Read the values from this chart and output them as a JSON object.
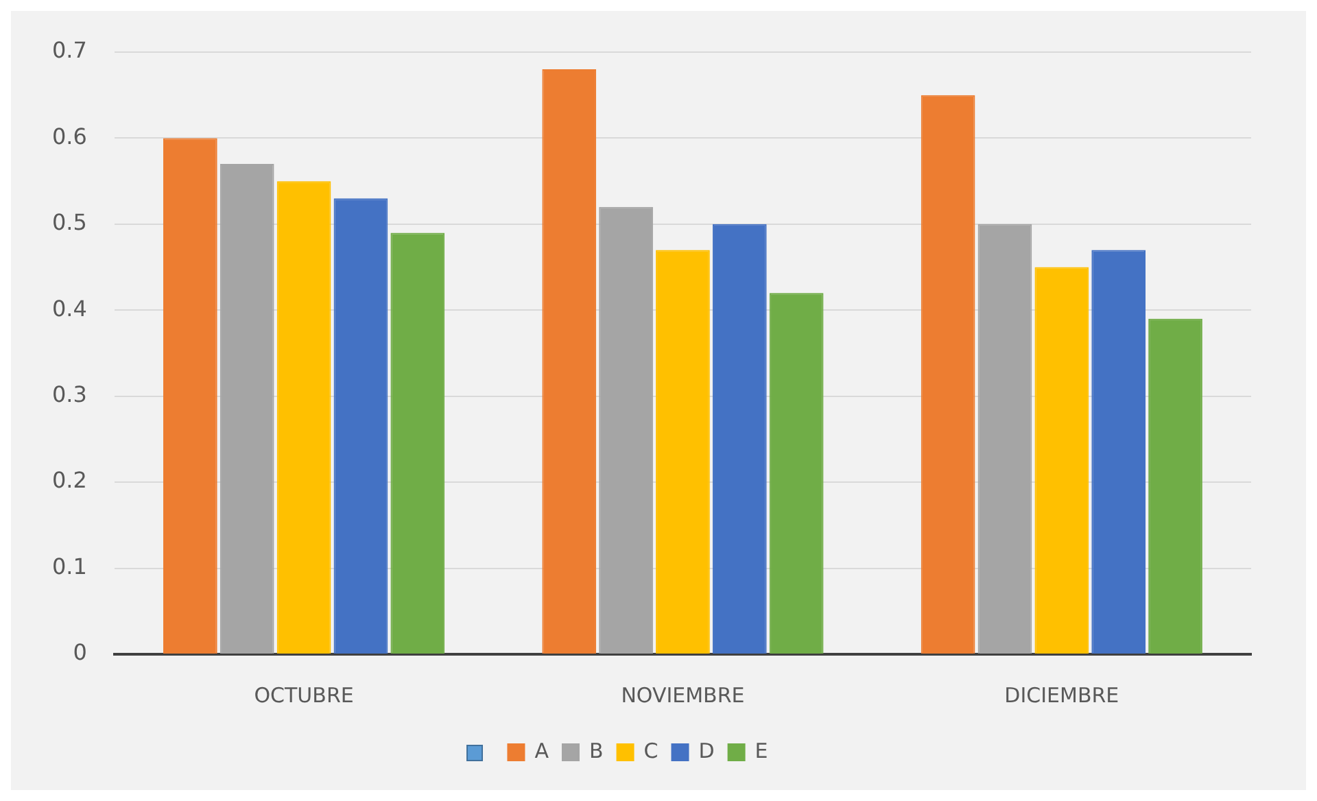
{
  "chart_data": {
    "type": "bar",
    "categories": [
      "OCTUBRE",
      "NOVIEMBRE",
      "DICIEMBRE"
    ],
    "series": [
      {
        "name": "A",
        "color": "#ed7d31",
        "values": [
          0.6,
          0.68,
          0.65
        ]
      },
      {
        "name": "B",
        "color": "#a5a5a5",
        "values": [
          0.57,
          0.52,
          0.5
        ]
      },
      {
        "name": "C",
        "color": "#ffc000",
        "values": [
          0.55,
          0.47,
          0.45
        ]
      },
      {
        "name": "D",
        "color": "#4472c4",
        "values": [
          0.53,
          0.5,
          0.47
        ]
      },
      {
        "name": "E",
        "color": "#70ad47",
        "values": [
          0.49,
          0.42,
          0.39
        ]
      }
    ],
    "ylim": [
      0,
      0.7
    ],
    "yticks": [
      0,
      0.1,
      0.2,
      0.3,
      0.4,
      0.5,
      0.6,
      0.7
    ],
    "grid": "y",
    "legend": "bottom"
  }
}
